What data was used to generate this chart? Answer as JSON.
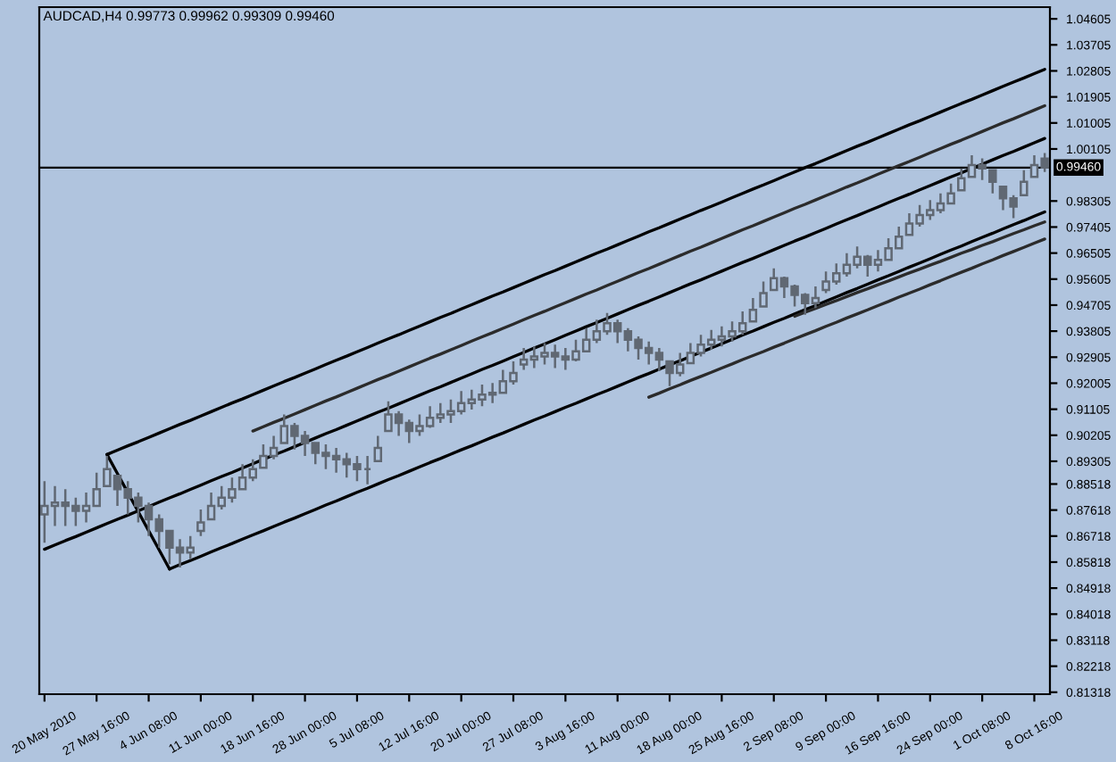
{
  "chart_data": {
    "type": "candlestick",
    "title": "AUDCAD,H4 0.99773 0.99962 0.99309 0.99460",
    "color": "#606873",
    "categories": [
      "20 May 2010",
      null,
      null,
      null,
      null,
      "27 May 16:00",
      null,
      null,
      null,
      null,
      "4 Jun 08:00",
      null,
      null,
      null,
      null,
      "11 Jun 00:00",
      null,
      null,
      null,
      null,
      "18 Jun 16:00",
      null,
      null,
      null,
      null,
      "28 Jun 00:00",
      null,
      null,
      null,
      null,
      "5 Jul 08:00",
      null,
      null,
      null,
      null,
      "12 Jul 16:00",
      null,
      null,
      null,
      null,
      "20 Jul 00:00",
      null,
      null,
      null,
      null,
      "27 Jul 08:00",
      null,
      null,
      null,
      null,
      "3 Aug 16:00",
      null,
      null,
      null,
      null,
      "11 Aug 00:00",
      null,
      null,
      null,
      null,
      "18 Aug 00:00",
      null,
      null,
      null,
      null,
      "25 Aug 16:00",
      null,
      null,
      null,
      null,
      "2 Sep 08:00",
      null,
      null,
      null,
      null,
      "9 Sep 00:00",
      null,
      null,
      null,
      null,
      "16 Sep 16:00",
      null,
      null,
      null,
      null,
      "24 Sep 00:00",
      null,
      null,
      null,
      null,
      "1 Oct 08:00",
      null,
      null,
      null,
      null,
      "8 Oct 16:00",
      null
    ],
    "ohlc": [
      [
        0.8747,
        0.8862,
        0.8649,
        0.8776
      ],
      [
        0.8776,
        0.8845,
        0.8707,
        0.8788
      ],
      [
        0.8788,
        0.8834,
        0.8707,
        0.8776
      ],
      [
        0.8776,
        0.8805,
        0.8707,
        0.8759
      ],
      [
        0.8759,
        0.8822,
        0.8719,
        0.8776
      ],
      [
        0.8776,
        0.8891,
        0.8776,
        0.8834
      ],
      [
        0.8845,
        0.8949,
        0.8845,
        0.8903
      ],
      [
        0.888,
        0.888,
        0.8776,
        0.8834
      ],
      [
        0.8834,
        0.8862,
        0.8747,
        0.8805
      ],
      [
        0.8805,
        0.8822,
        0.8719,
        0.8776
      ],
      [
        0.8776,
        0.8788,
        0.8672,
        0.873
      ],
      [
        0.873,
        0.8747,
        0.8632,
        0.869
      ],
      [
        0.869,
        0.869,
        0.8575,
        0.8632
      ],
      [
        0.8632,
        0.8661,
        0.8563,
        0.8615
      ],
      [
        0.8615,
        0.8672,
        0.8592,
        0.8632
      ],
      [
        0.869,
        0.8764,
        0.8672,
        0.8719
      ],
      [
        0.873,
        0.8822,
        0.873,
        0.8776
      ],
      [
        0.8776,
        0.8845,
        0.8764,
        0.8805
      ],
      [
        0.8805,
        0.8874,
        0.8788,
        0.8834
      ],
      [
        0.8834,
        0.892,
        0.8834,
        0.8874
      ],
      [
        0.8874,
        0.8937,
        0.8862,
        0.8903
      ],
      [
        0.8908,
        0.8989,
        0.8908,
        0.8949
      ],
      [
        0.8949,
        0.9018,
        0.8937,
        0.8977
      ],
      [
        0.8994,
        0.9092,
        0.8994,
        0.9052
      ],
      [
        0.9052,
        0.9063,
        0.8971,
        0.9018
      ],
      [
        0.9018,
        0.9035,
        0.8949,
        0.8994
      ],
      [
        0.8994,
        0.8994,
        0.892,
        0.896
      ],
      [
        0.896,
        0.8989,
        0.8903,
        0.8949
      ],
      [
        0.8949,
        0.8977,
        0.8891,
        0.8937
      ],
      [
        0.8937,
        0.896,
        0.8874,
        0.892
      ],
      [
        0.892,
        0.8949,
        0.8862,
        0.8903
      ],
      [
        0.8903,
        0.8949,
        0.8851,
        0.8903
      ],
      [
        0.8931,
        0.9018,
        0.8931,
        0.8977
      ],
      [
        0.9035,
        0.9138,
        0.9035,
        0.9092
      ],
      [
        0.9092,
        0.9104,
        0.9018,
        0.9063
      ],
      [
        0.9063,
        0.9075,
        0.8994,
        0.9035
      ],
      [
        0.9035,
        0.9092,
        0.9018,
        0.9052
      ],
      [
        0.9052,
        0.9121,
        0.9046,
        0.9081
      ],
      [
        0.9081,
        0.9132,
        0.9063,
        0.9092
      ],
      [
        0.9092,
        0.9144,
        0.9063,
        0.9104
      ],
      [
        0.9104,
        0.9173,
        0.9092,
        0.9132
      ],
      [
        0.9132,
        0.9178,
        0.9109,
        0.9144
      ],
      [
        0.9144,
        0.9196,
        0.9121,
        0.9161
      ],
      [
        0.9161,
        0.9201,
        0.9132,
        0.9167
      ],
      [
        0.9167,
        0.9247,
        0.9167,
        0.9207
      ],
      [
        0.9207,
        0.9276,
        0.9196,
        0.9236
      ],
      [
        0.9265,
        0.9322,
        0.9247,
        0.9282
      ],
      [
        0.9282,
        0.9328,
        0.9253,
        0.9293
      ],
      [
        0.9293,
        0.9339,
        0.9265,
        0.9305
      ],
      [
        0.9305,
        0.9334,
        0.9253,
        0.9293
      ],
      [
        0.9293,
        0.9322,
        0.9247,
        0.9282
      ],
      [
        0.9282,
        0.9351,
        0.9276,
        0.9311
      ],
      [
        0.9311,
        0.9391,
        0.9311,
        0.9351
      ],
      [
        0.9351,
        0.942,
        0.9339,
        0.938
      ],
      [
        0.938,
        0.9443,
        0.9368,
        0.9408
      ],
      [
        0.9408,
        0.942,
        0.9339,
        0.938
      ],
      [
        0.938,
        0.9391,
        0.9311,
        0.9351
      ],
      [
        0.9351,
        0.9362,
        0.9282,
        0.9322
      ],
      [
        0.9322,
        0.9345,
        0.9265,
        0.9305
      ],
      [
        0.9305,
        0.9322,
        0.9242,
        0.9282
      ],
      [
        0.9276,
        0.9276,
        0.919,
        0.9236
      ],
      [
        0.9236,
        0.9305,
        0.9224,
        0.9265
      ],
      [
        0.927,
        0.9339,
        0.927,
        0.9305
      ],
      [
        0.9305,
        0.9368,
        0.9293,
        0.9334
      ],
      [
        0.9334,
        0.9385,
        0.9316,
        0.9351
      ],
      [
        0.9351,
        0.9397,
        0.9328,
        0.9362
      ],
      [
        0.9362,
        0.9414,
        0.9345,
        0.938
      ],
      [
        0.938,
        0.9449,
        0.9368,
        0.9408
      ],
      [
        0.9414,
        0.9495,
        0.9414,
        0.9454
      ],
      [
        0.9466,
        0.9552,
        0.9466,
        0.9512
      ],
      [
        0.9523,
        0.9598,
        0.9523,
        0.9564
      ],
      [
        0.9564,
        0.9569,
        0.9495,
        0.9535
      ],
      [
        0.9535,
        0.9541,
        0.9466,
        0.9506
      ],
      [
        0.9506,
        0.9512,
        0.9437,
        0.9477
      ],
      [
        0.9477,
        0.9535,
        0.946,
        0.9495
      ],
      [
        0.9523,
        0.9587,
        0.9512,
        0.9552
      ],
      [
        0.9552,
        0.9615,
        0.9541,
        0.9581
      ],
      [
        0.9581,
        0.965,
        0.9569,
        0.961
      ],
      [
        0.961,
        0.9673,
        0.9598,
        0.9638
      ],
      [
        0.9638,
        0.9644,
        0.9569,
        0.961
      ],
      [
        0.961,
        0.9661,
        0.9587,
        0.9627
      ],
      [
        0.9627,
        0.9702,
        0.9627,
        0.9667
      ],
      [
        0.9667,
        0.9742,
        0.9667,
        0.9707
      ],
      [
        0.9713,
        0.9788,
        0.9713,
        0.9753
      ],
      [
        0.9753,
        0.9817,
        0.9742,
        0.9782
      ],
      [
        0.9782,
        0.9834,
        0.9765,
        0.9799
      ],
      [
        0.9799,
        0.9857,
        0.9788,
        0.9822
      ],
      [
        0.9822,
        0.9891,
        0.9822,
        0.9857
      ],
      [
        0.9868,
        0.9943,
        0.9868,
        0.9909
      ],
      [
        0.9914,
        0.9989,
        0.9914,
        0.9955
      ],
      [
        0.9955,
        0.9978,
        0.9903,
        0.9943
      ],
      [
        0.9937,
        0.9937,
        0.9857,
        0.9897
      ],
      [
        0.988,
        0.988,
        0.9799,
        0.984
      ],
      [
        0.984,
        0.9851,
        0.9771,
        0.9811
      ],
      [
        0.9851,
        0.9937,
        0.9851,
        0.9897
      ],
      [
        0.9914,
        0.9989,
        0.9914,
        0.9955
      ],
      [
        0.99773,
        0.99962,
        0.99309,
        0.9946
      ]
    ],
    "series": [
      {
        "type": "line",
        "color": "#000000",
        "values": [
          null,
          null,
          null,
          null,
          null,
          null,
          0.8954,
          0.8969,
          0.8984,
          0.8998,
          0.9013,
          0.9028,
          0.9043,
          0.9058,
          0.9072,
          0.9087,
          0.9102,
          0.9117,
          0.9132,
          0.9146,
          0.9161,
          0.9176,
          0.9191,
          0.9206,
          0.922,
          0.9235,
          0.925,
          0.9265,
          0.928,
          0.9294,
          0.9309,
          0.9324,
          0.9339,
          0.9354,
          0.9368,
          0.9383,
          0.9398,
          0.9413,
          0.9428,
          0.9442,
          0.9457,
          0.9472,
          0.9487,
          0.9502,
          0.9516,
          0.9531,
          0.9546,
          0.9561,
          0.9576,
          0.959,
          0.9605,
          0.962,
          0.9635,
          0.965,
          0.9664,
          0.9679,
          0.9694,
          0.9709,
          0.9724,
          0.9738,
          0.9753,
          0.9768,
          0.9783,
          0.9798,
          0.9812,
          0.9827,
          0.9842,
          0.9857,
          0.9872,
          0.9886,
          0.9901,
          0.9916,
          0.9931,
          0.9946,
          0.996,
          0.9975,
          0.999,
          1.0005,
          1.002,
          1.0034,
          1.0049,
          1.0064,
          1.0079,
          1.0094,
          1.0108,
          1.0123,
          1.0138,
          1.0153,
          1.0168,
          1.0182,
          1.0197,
          1.0212,
          1.0227,
          1.0242,
          1.0256,
          1.0271,
          1.0286
        ]
      },
      {
        "type": "line",
        "color": "#000000",
        "values": [
          null,
          null,
          null,
          null,
          null,
          null,
          0.8954,
          0.8888,
          0.8822,
          0.8756,
          0.869,
          0.8624,
          0.8558,
          null,
          null,
          null,
          null,
          null,
          null,
          null,
          null,
          null,
          null,
          null,
          null,
          null,
          null,
          null,
          null,
          null,
          null,
          null,
          null,
          null,
          null,
          null,
          null,
          null,
          null,
          null,
          null,
          null,
          null,
          null,
          null,
          null,
          null,
          null,
          null,
          null,
          null,
          null,
          null,
          null,
          null,
          null,
          null,
          null,
          null,
          null,
          null,
          null,
          null,
          null,
          null,
          null,
          null,
          null,
          null,
          null,
          null,
          null,
          null,
          null,
          null,
          null,
          null,
          null,
          null,
          null,
          null,
          null,
          null,
          null,
          null,
          null,
          null,
          null,
          null,
          null,
          null,
          null,
          null,
          null,
          null,
          null,
          null
        ]
      },
      {
        "type": "line",
        "color": "#000000",
        "values": [
          null,
          null,
          null,
          null,
          null,
          null,
          null,
          null,
          null,
          null,
          null,
          null,
          0.8558,
          0.8573,
          0.8587,
          0.8602,
          0.8617,
          0.8632,
          0.8646,
          0.8661,
          0.8676,
          0.869,
          0.8705,
          0.872,
          0.8734,
          0.8749,
          0.8764,
          0.8779,
          0.8793,
          0.8808,
          0.8823,
          0.8837,
          0.8852,
          0.8867,
          0.8881,
          0.8896,
          0.8911,
          0.8926,
          0.894,
          0.8955,
          0.897,
          0.8984,
          0.8999,
          0.9014,
          0.9028,
          0.9043,
          0.9058,
          0.9073,
          0.9087,
          0.9102,
          0.9117,
          0.9131,
          0.9146,
          0.9161,
          0.9175,
          0.919,
          0.9205,
          0.922,
          0.9234,
          0.9249,
          0.9264,
          0.9278,
          0.9293,
          0.9308,
          0.9322,
          0.9337,
          0.9352,
          0.9367,
          0.9381,
          0.9396,
          0.9411,
          0.9425,
          0.944,
          0.9455,
          0.9469,
          0.9484,
          0.9499,
          0.9514,
          0.9528,
          0.9543,
          0.9558,
          0.9572,
          0.9587,
          0.9602,
          0.9616,
          0.9631,
          0.9646,
          0.9661,
          0.9675,
          0.969,
          0.9705,
          0.9719,
          0.9734,
          0.9749,
          0.9763,
          0.9778,
          0.9793
        ]
      },
      {
        "type": "line",
        "color": "#000000",
        "values": [
          0.8626,
          0.8641,
          0.8656,
          0.867,
          0.8685,
          0.87,
          0.8715,
          0.873,
          0.8744,
          0.8759,
          0.8774,
          0.8789,
          0.8804,
          0.8818,
          0.8833,
          0.8848,
          0.8863,
          0.8878,
          0.8892,
          0.8907,
          0.8922,
          0.8937,
          0.8952,
          0.8966,
          0.8981,
          0.8996,
          0.9011,
          0.9026,
          0.904,
          0.9055,
          0.907,
          0.9085,
          0.91,
          0.9114,
          0.9129,
          0.9144,
          0.9159,
          0.9174,
          0.9188,
          0.9203,
          0.9218,
          0.9233,
          0.9248,
          0.9262,
          0.9277,
          0.9292,
          0.9307,
          0.9322,
          0.9336,
          0.9351,
          0.9366,
          0.9381,
          0.9396,
          0.941,
          0.9425,
          0.944,
          0.9455,
          0.947,
          0.9484,
          0.9499,
          0.9514,
          0.9529,
          0.9544,
          0.9558,
          0.9573,
          0.9588,
          0.9603,
          0.9618,
          0.9632,
          0.9647,
          0.9662,
          0.9677,
          0.9692,
          0.9706,
          0.9721,
          0.9736,
          0.9751,
          0.9766,
          0.978,
          0.9795,
          0.981,
          0.9825,
          0.984,
          0.9854,
          0.9869,
          0.9884,
          0.9899,
          0.9914,
          0.9928,
          0.9943,
          0.9958,
          0.9973,
          0.9988,
          1.0002,
          1.0017,
          1.0032,
          1.0047
        ]
      },
      {
        "type": "line",
        "color": "#2b2b2b",
        "values": [
          null,
          null,
          null,
          null,
          null,
          null,
          null,
          null,
          null,
          null,
          null,
          null,
          null,
          null,
          null,
          null,
          null,
          null,
          null,
          null,
          0.9035,
          0.905,
          0.9065,
          0.9079,
          0.9094,
          0.9109,
          0.9124,
          0.9139,
          0.9153,
          0.9168,
          0.9183,
          0.9198,
          0.9213,
          0.9227,
          0.9242,
          0.9257,
          0.9272,
          0.9287,
          0.9301,
          0.9316,
          0.9331,
          0.9346,
          0.9361,
          0.9375,
          0.939,
          0.9405,
          0.942,
          0.9435,
          0.9449,
          0.9464,
          0.9479,
          0.9494,
          0.9509,
          0.9523,
          0.9538,
          0.9553,
          0.9568,
          0.9583,
          0.9597,
          0.9612,
          0.9627,
          0.9642,
          0.9657,
          0.9671,
          0.9686,
          0.9701,
          0.9716,
          0.9731,
          0.9745,
          0.976,
          0.9775,
          0.979,
          0.9805,
          0.9819,
          0.9834,
          0.9849,
          0.9864,
          0.9879,
          0.9893,
          0.9908,
          0.9923,
          0.9938,
          0.9953,
          0.9967,
          0.9982,
          0.9997,
          1.0012,
          1.0027,
          1.0041,
          1.0056,
          1.0071,
          1.0086,
          1.0101,
          1.0115,
          1.013,
          1.0145,
          1.016
        ]
      },
      {
        "type": "line",
        "color": "#2b2b2b",
        "values": [
          null,
          null,
          null,
          null,
          null,
          null,
          null,
          null,
          null,
          null,
          null,
          null,
          null,
          null,
          null,
          null,
          null,
          null,
          null,
          null,
          null,
          null,
          null,
          null,
          null,
          null,
          null,
          null,
          null,
          null,
          null,
          null,
          null,
          null,
          null,
          null,
          null,
          null,
          null,
          null,
          null,
          null,
          null,
          null,
          null,
          null,
          null,
          null,
          null,
          null,
          null,
          null,
          null,
          null,
          null,
          null,
          null,
          null,
          null,
          null,
          null,
          null,
          null,
          null,
          null,
          null,
          null,
          null,
          null,
          null,
          null,
          null,
          0.9432,
          0.9446,
          0.9459,
          0.9473,
          0.9486,
          0.95,
          0.9514,
          0.9527,
          0.9541,
          0.9554,
          0.9568,
          0.9582,
          0.9595,
          0.9609,
          0.9622,
          0.9636,
          0.965,
          0.9663,
          0.9677,
          0.969,
          0.9704,
          0.9718,
          0.9731,
          0.9745,
          0.9758
        ]
      },
      {
        "type": "line",
        "color": "#2b2b2b",
        "values": [
          null,
          null,
          null,
          null,
          null,
          null,
          null,
          null,
          null,
          null,
          null,
          null,
          null,
          null,
          null,
          null,
          null,
          null,
          null,
          null,
          null,
          null,
          null,
          null,
          null,
          null,
          null,
          null,
          null,
          null,
          null,
          null,
          null,
          null,
          null,
          null,
          null,
          null,
          null,
          null,
          null,
          null,
          null,
          null,
          null,
          null,
          null,
          null,
          null,
          null,
          null,
          null,
          null,
          null,
          null,
          null,
          null,
          null,
          0.9152,
          0.9166,
          0.9181,
          0.9195,
          0.921,
          0.9224,
          0.9238,
          0.9253,
          0.9267,
          0.9282,
          0.9296,
          0.931,
          0.9325,
          0.9339,
          0.9354,
          0.9368,
          0.9382,
          0.9397,
          0.9411,
          0.9426,
          0.944,
          0.9454,
          0.9469,
          0.9483,
          0.9498,
          0.9512,
          0.9526,
          0.9541,
          0.9555,
          0.957,
          0.9584,
          0.9598,
          0.9613,
          0.9627,
          0.9642,
          0.9656,
          0.967,
          0.9685,
          0.9699
        ]
      }
    ],
    "ref_lines": [
      {
        "axis": "y",
        "value": 0.9946,
        "label": "0.99460",
        "color": "#000000"
      }
    ],
    "ylim": [
      0.8125,
      1.0501
    ],
    "yticks": [
      1.04605,
      1.03705,
      1.02805,
      1.01905,
      1.01005,
      1.00105,
      0.98305,
      0.97405,
      0.96505,
      0.95605,
      0.94705,
      0.93805,
      0.92905,
      0.92005,
      0.91105,
      0.90205,
      0.89305,
      0.88518,
      0.87618,
      0.86718,
      0.85818,
      0.84918,
      0.84018,
      0.83118,
      0.82218,
      0.81318
    ]
  }
}
